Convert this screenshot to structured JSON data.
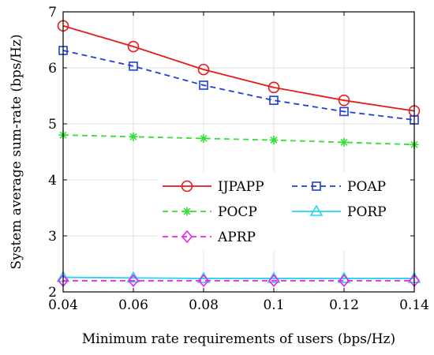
{
  "chart_data": {
    "type": "line",
    "xlabel": "Minimum rate requirements of users (bps/Hz)",
    "ylabel": "System average sum-rate (bps/Hz)",
    "x": [
      0.04,
      0.06,
      0.08,
      0.1,
      0.12,
      0.14
    ],
    "xlim": [
      0.04,
      0.14
    ],
    "ylim": [
      2,
      7
    ],
    "xticks": [
      0.04,
      0.06,
      0.08,
      0.1,
      0.12,
      0.14
    ],
    "xtick_labels": [
      "0.04",
      "0.06",
      "0.08",
      "0.1",
      "0.12",
      "0.14"
    ],
    "yticks": [
      2,
      3,
      4,
      5,
      6,
      7
    ],
    "ytick_labels": [
      "2",
      "3",
      "4",
      "5",
      "6",
      "7"
    ],
    "grid": true,
    "legend_position": "middle-right",
    "series": [
      {
        "name": "IJPAPP",
        "values": [
          6.75,
          6.38,
          5.97,
          5.65,
          5.42,
          5.23
        ],
        "color": "#e41a1c",
        "dash": "solid",
        "marker": "circle"
      },
      {
        "name": "POAP",
        "values": [
          6.31,
          6.03,
          5.69,
          5.42,
          5.22,
          5.07
        ],
        "color": "#1f3fd6",
        "dash": "dashed",
        "marker": "square"
      },
      {
        "name": "POCP",
        "values": [
          4.8,
          4.77,
          4.74,
          4.71,
          4.67,
          4.63
        ],
        "color": "#33e033",
        "dash": "dashed",
        "marker": "asterisk"
      },
      {
        "name": "PORP",
        "values": [
          2.26,
          2.25,
          2.24,
          2.24,
          2.24,
          2.24
        ],
        "color": "#22d8ee",
        "dash": "solid",
        "marker": "triangle"
      },
      {
        "name": "APRP",
        "values": [
          2.2,
          2.2,
          2.2,
          2.2,
          2.2,
          2.2
        ],
        "color": "#ee22ee",
        "dash": "dashed",
        "marker": "diamond"
      }
    ]
  }
}
